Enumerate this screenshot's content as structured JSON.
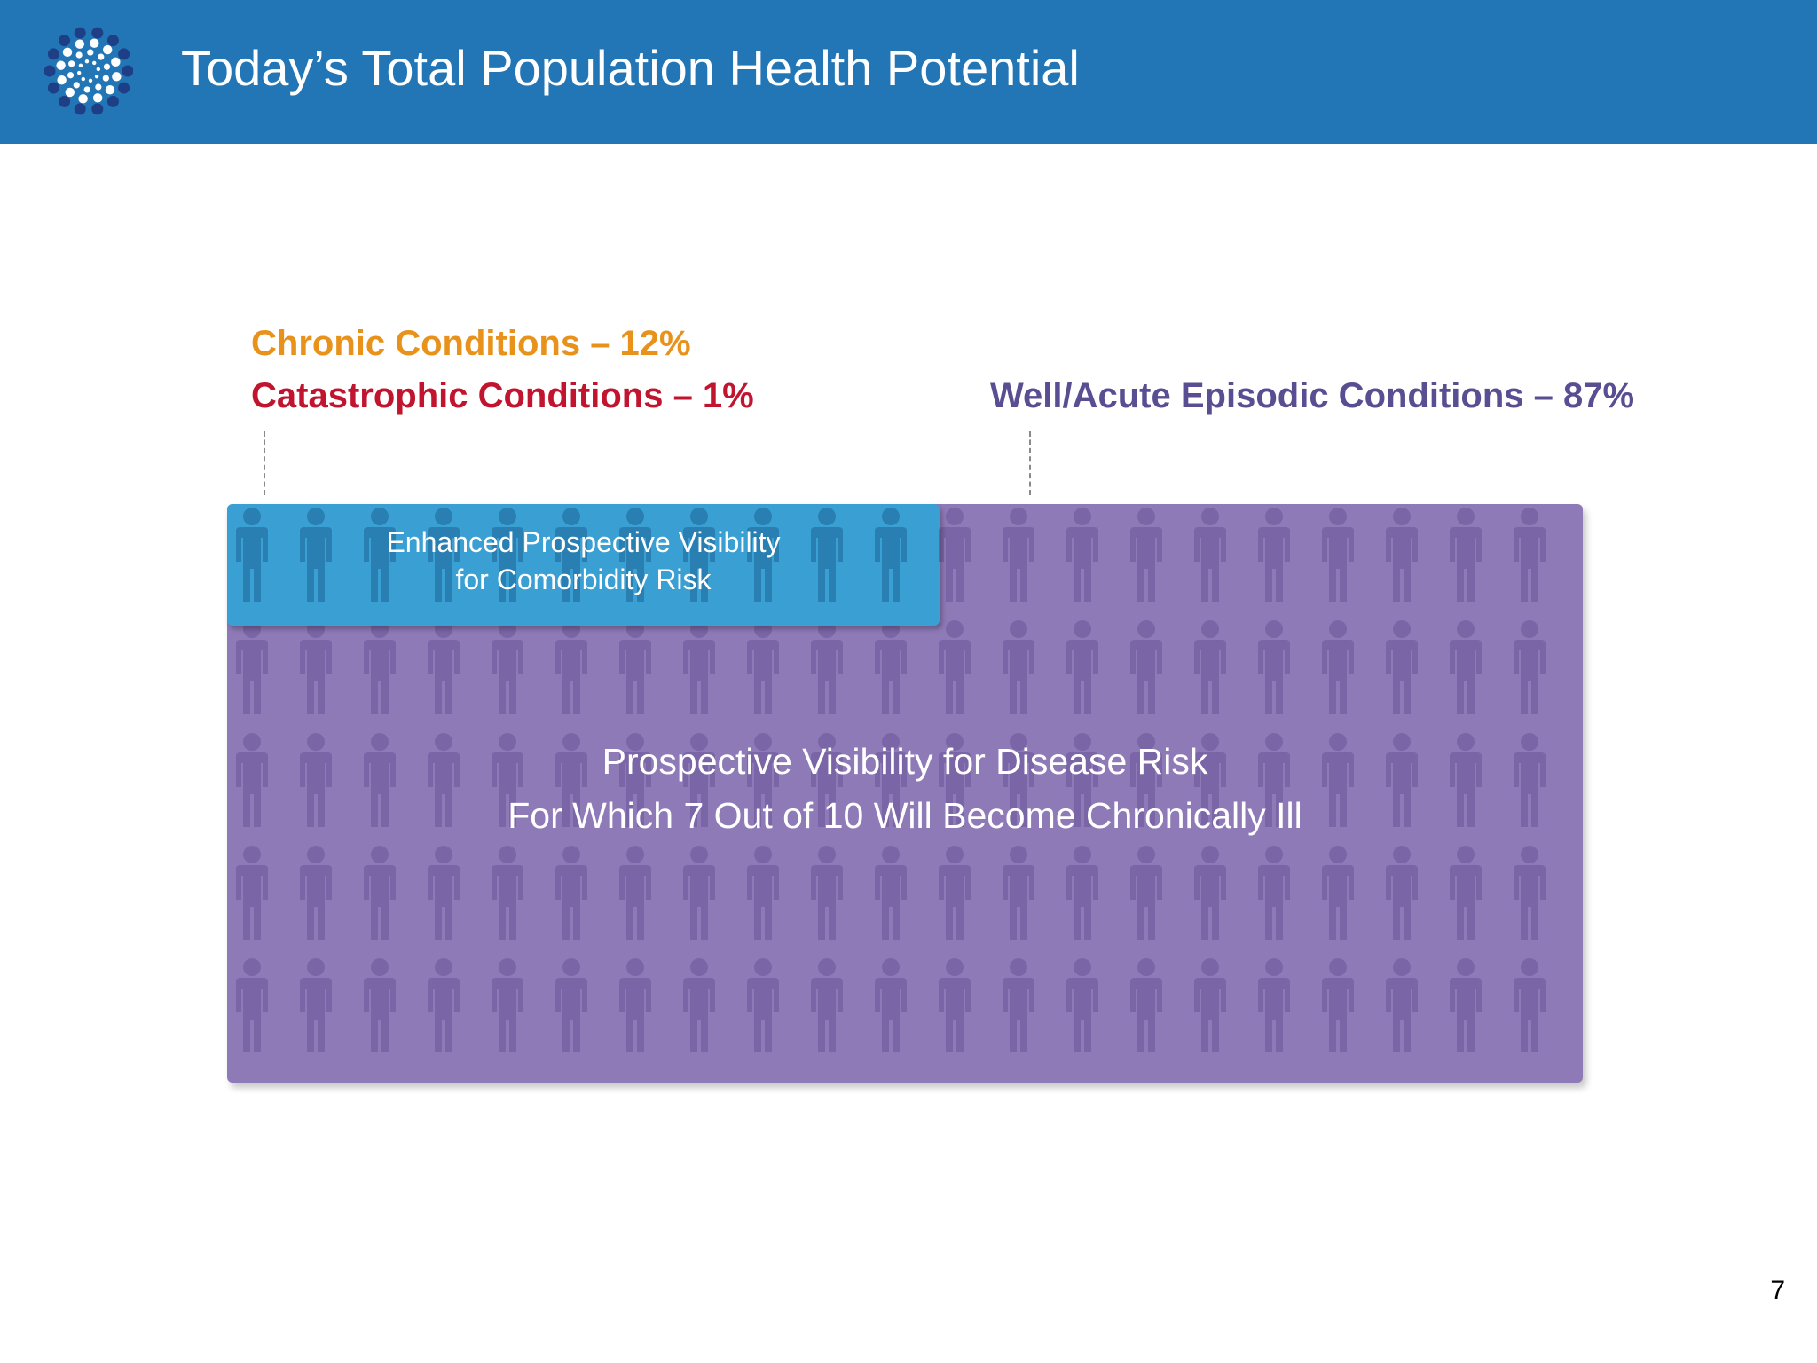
{
  "header": {
    "title": "Today’s Total Population Health Potential",
    "logo_icon": "dotted-sunburst-logo-icon",
    "background_color": "#2376b5"
  },
  "labels": {
    "chronic": "Chronic Conditions – 12%",
    "catastrophic": "Catastrophic Conditions – 1%",
    "well": "Well/Acute Episodic Conditions – 87%",
    "colors": {
      "chronic": "#e8921b",
      "catastrophic": "#c0142f",
      "well": "#5a4e92"
    }
  },
  "boxes": {
    "comorbidity": {
      "line1": "Enhanced  Prospective Visibility",
      "line2": "for Comorbidity Risk",
      "color": "#3a9fd3"
    },
    "disease": {
      "line1": "Prospective Visibility for Disease Risk",
      "line2": "For Which 7 Out of 10 Will Become Chronically Ill",
      "color": "#8f7ab8"
    },
    "figure_icon": "person-icon"
  },
  "page_number": "7"
}
